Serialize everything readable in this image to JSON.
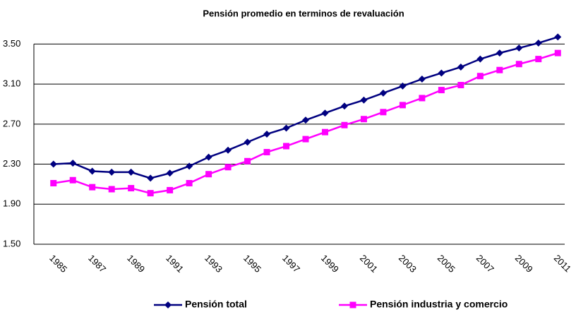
{
  "chart_data": {
    "type": "line",
    "title": "Pensión promedio en terminos de revaluación",
    "categories": [
      "1985",
      null,
      "1987",
      null,
      "1989",
      null,
      "1991",
      null,
      "1993",
      null,
      "1995",
      null,
      "1997",
      null,
      "1999",
      null,
      "2001",
      null,
      "2003",
      null,
      "2005",
      null,
      "2007",
      null,
      "2009",
      null,
      "2011"
    ],
    "series": [
      {
        "name": "Pensión total",
        "color": "#000080",
        "marker": "diamond",
        "values": [
          2.3,
          2.31,
          2.23,
          2.22,
          2.22,
          2.16,
          2.21,
          2.28,
          2.37,
          2.44,
          2.52,
          2.6,
          2.66,
          2.74,
          2.81,
          2.88,
          2.94,
          3.01,
          3.08,
          3.15,
          3.21,
          3.27,
          3.35,
          3.41,
          3.46,
          3.51,
          3.57
        ]
      },
      {
        "name": "Pensión industria y comercio",
        "color": "#ff00ff",
        "marker": "square",
        "values": [
          2.11,
          2.14,
          2.07,
          2.05,
          2.06,
          2.01,
          2.04,
          2.11,
          2.2,
          2.27,
          2.33,
          2.42,
          2.48,
          2.55,
          2.62,
          2.69,
          2.75,
          2.82,
          2.89,
          2.96,
          3.04,
          3.09,
          3.18,
          3.24,
          3.3,
          3.35,
          3.41
        ]
      }
    ],
    "ylim": [
      1.5,
      3.7
    ],
    "yticks": [
      {
        "value": 1.5,
        "label": "1.50"
      },
      {
        "value": 1.9,
        "label": "1.90"
      },
      {
        "value": 2.3,
        "label": "2.30"
      },
      {
        "value": 2.7,
        "label": "2.70"
      },
      {
        "value": 3.1,
        "label": "3.10"
      },
      {
        "value": 3.5,
        "label": "3.50"
      }
    ],
    "grid": true,
    "legend": "bottom"
  }
}
